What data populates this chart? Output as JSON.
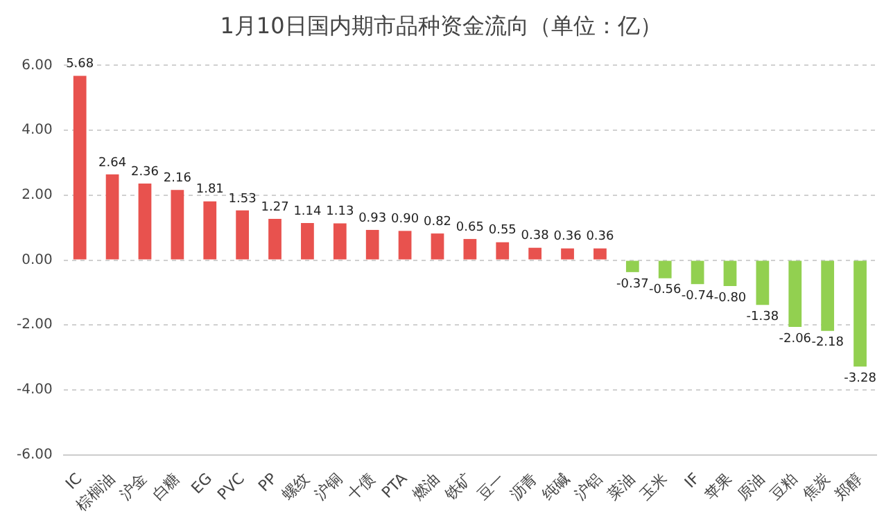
{
  "chart_data": {
    "type": "bar",
    "title": "1月10日国内期市品种资金流向（单位：亿）",
    "categories": [
      "IC",
      "棕榈油",
      "沪金",
      "白糖",
      "EG",
      "PVC",
      "PP",
      "螺纹",
      "沪铜",
      "十债",
      "PTA",
      "燃油",
      "铁矿",
      "豆一",
      "沥青",
      "纯碱",
      "沪铝",
      "菜油",
      "玉米",
      "IF",
      "苹果",
      "原油",
      "豆粕",
      "焦炭",
      "郑醇"
    ],
    "values": [
      5.68,
      2.64,
      2.36,
      2.16,
      1.81,
      1.53,
      1.27,
      1.14,
      1.13,
      0.93,
      0.9,
      0.82,
      0.65,
      0.55,
      0.38,
      0.36,
      0.36,
      -0.37,
      -0.56,
      -0.74,
      -0.8,
      -1.38,
      -2.06,
      -2.18,
      -3.28
    ],
    "value_labels": [
      "5.68",
      "2.64",
      "2.36",
      "2.16",
      "1.81",
      "1.53",
      "1.27",
      "1.14",
      "1.13",
      "0.93",
      "0.90",
      "0.82",
      "0.65",
      "0.55",
      "0.38",
      "0.36",
      "0.36",
      "-0.37",
      "-0.56",
      "-0.74",
      "-0.80",
      "-1.38",
      "-2.06",
      "-2.18",
      "-3.28"
    ],
    "colors": [
      "#e8524e",
      "#e8524e",
      "#e8524e",
      "#e8524e",
      "#e8524e",
      "#e8524e",
      "#e8524e",
      "#e8524e",
      "#e8524e",
      "#e8524e",
      "#e8524e",
      "#e8524e",
      "#e8524e",
      "#e8524e",
      "#e8524e",
      "#e8524e",
      "#e8524e",
      "#92d050",
      "#92d050",
      "#92d050",
      "#92d050",
      "#92d050",
      "#92d050",
      "#92d050",
      "#92d050"
    ],
    "ylim": [
      -6,
      6
    ],
    "yticks": [
      {
        "value": -6,
        "label": "-6.00"
      },
      {
        "value": -4,
        "label": "-4.00"
      },
      {
        "value": -2,
        "label": "-2.00"
      },
      {
        "value": 0,
        "label": "0.00"
      },
      {
        "value": 2,
        "label": "2.00"
      },
      {
        "value": 4,
        "label": "4.00"
      },
      {
        "value": 6,
        "label": "6.00"
      }
    ],
    "grid": "y",
    "legend": false
  }
}
